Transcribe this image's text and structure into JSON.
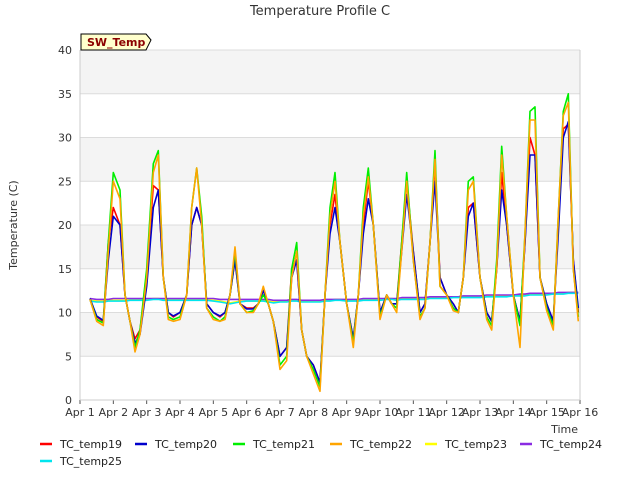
{
  "chart_data": {
    "type": "line",
    "title": "Temperature Profile C",
    "xlabel": "Time",
    "ylabel": "Temperature (C)",
    "badge": "SW_Temp",
    "xlim": [
      0,
      15
    ],
    "ylim": [
      0,
      40
    ],
    "x_ticks": [
      "Apr 1",
      "Apr 2",
      "Apr 3",
      "Apr 4",
      "Apr 5",
      "Apr 6",
      "Apr 7",
      "Apr 8",
      "Apr 9",
      "Apr 10",
      "Apr 11",
      "Apr 12",
      "Apr 13",
      "Apr 14",
      "Apr 15",
      "Apr 16"
    ],
    "y_ticks": [
      0,
      5,
      10,
      15,
      20,
      25,
      30,
      35,
      40
    ],
    "legend_position": "bottom",
    "x": [
      0.3,
      0.5,
      0.7,
      0.85,
      1.0,
      1.2,
      1.35,
      1.5,
      1.65,
      1.8,
      2.0,
      2.2,
      2.35,
      2.5,
      2.65,
      2.8,
      3.0,
      3.2,
      3.35,
      3.5,
      3.65,
      3.8,
      4.0,
      4.2,
      4.35,
      4.5,
      4.65,
      4.8,
      5.0,
      5.2,
      5.35,
      5.5,
      5.65,
      5.8,
      6.0,
      6.2,
      6.35,
      6.5,
      6.65,
      6.8,
      7.0,
      7.2,
      7.35,
      7.5,
      7.65,
      7.8,
      8.0,
      8.2,
      8.35,
      8.5,
      8.65,
      8.8,
      9.0,
      9.2,
      9.35,
      9.5,
      9.65,
      9.8,
      10.0,
      10.2,
      10.35,
      10.5,
      10.65,
      10.8,
      11.0,
      11.2,
      11.35,
      11.5,
      11.65,
      11.8,
      12.0,
      12.2,
      12.35,
      12.5,
      12.65,
      12.8,
      13.0,
      13.2,
      13.35,
      13.5,
      13.65,
      13.8,
      14.0,
      14.2,
      14.35,
      14.5,
      14.65,
      14.8,
      14.95
    ],
    "series": [
      {
        "name": "TC_temp19",
        "color": "#ff0000",
        "values": [
          11.5,
          9.5,
          9.0,
          18,
          22,
          20,
          12,
          9,
          7,
          8,
          14,
          24.5,
          24,
          14,
          10,
          9.5,
          10,
          12,
          20,
          22,
          20,
          11,
          10,
          9.5,
          10,
          12,
          16,
          11,
          10.5,
          10.5,
          11,
          12.5,
          11,
          9,
          5,
          6,
          15,
          16,
          8,
          5,
          4,
          2,
          12,
          20,
          23.5,
          18,
          11,
          7,
          12,
          20,
          25,
          20,
          10,
          12,
          11,
          11,
          18,
          25,
          17,
          10,
          11,
          18,
          27,
          14,
          12,
          11,
          10,
          14,
          22,
          22.5,
          14,
          10,
          9,
          15,
          26,
          20,
          12,
          9,
          18,
          30,
          28,
          14,
          11,
          9,
          20,
          31,
          31.5,
          16,
          10
        ]
      },
      {
        "name": "TC_temp20",
        "color": "#0000cc",
        "values": [
          11.6,
          9.6,
          9.1,
          16,
          21,
          20,
          12,
          9,
          6.5,
          7.5,
          13,
          22,
          24,
          14,
          10,
          9.6,
          10,
          12,
          20,
          22,
          20,
          11,
          10,
          9.6,
          10,
          12,
          16,
          11,
          10.4,
          10.4,
          11,
          12.5,
          11,
          9,
          5,
          6,
          14,
          16,
          8,
          5,
          4,
          2,
          12,
          19,
          22,
          18,
          11,
          7,
          12,
          19,
          23,
          20,
          10,
          12,
          11,
          11,
          17,
          23.5,
          17,
          10,
          11,
          18,
          25,
          14,
          12,
          11,
          10,
          14,
          21,
          22.5,
          14,
          10,
          9,
          15,
          24,
          20,
          12,
          9,
          18,
          28,
          28,
          14,
          11,
          9,
          19,
          30,
          31.8,
          16,
          10.5
        ]
      },
      {
        "name": "TC_temp21",
        "color": "#00ee00",
        "values": [
          11.5,
          9.2,
          8.8,
          18,
          26,
          24,
          12,
          9,
          6,
          8,
          15,
          27,
          28.5,
          14,
          9.5,
          9.2,
          9.5,
          12,
          22,
          26.5,
          21,
          10.5,
          9.5,
          9,
          9.5,
          12,
          17,
          11,
          10,
          10.2,
          11,
          12,
          11,
          9,
          4,
          5,
          15,
          18,
          8,
          5,
          3.5,
          1.5,
          12,
          22,
          26,
          18,
          11,
          6.5,
          12,
          22,
          26.5,
          20,
          9.5,
          12,
          11,
          10.5,
          18,
          26,
          16,
          9.5,
          10.5,
          18,
          28.5,
          13,
          12,
          10.5,
          10,
          14,
          25,
          25.5,
          14,
          9.5,
          8.5,
          16,
          29,
          21,
          12,
          8.5,
          19,
          33,
          33.5,
          14,
          10.5,
          8.5,
          21,
          33,
          35,
          15,
          9.5
        ]
      },
      {
        "name": "TC_temp22",
        "color": "#ffa500",
        "values": [
          11.5,
          9.0,
          8.5,
          17,
          25,
          23,
          12,
          9,
          5.5,
          7.5,
          14,
          26,
          28,
          14,
          9.2,
          9,
          9.2,
          12,
          22,
          26.5,
          20,
          10.5,
          9.2,
          9,
          9.2,
          12,
          17.5,
          11,
          10,
          10,
          11,
          13,
          11,
          9,
          3.5,
          4.5,
          14,
          17,
          8,
          5,
          3,
          1,
          12,
          21,
          25,
          18,
          11,
          6,
          12,
          21,
          25.5,
          20,
          9.2,
          12,
          11,
          10,
          17,
          25,
          16,
          9.2,
          10.5,
          18,
          27.5,
          13,
          12,
          10.2,
          10,
          14,
          24,
          25,
          14,
          9.2,
          8,
          15,
          28,
          21,
          12,
          6,
          19,
          32,
          32,
          14,
          10.2,
          8,
          21,
          32.5,
          34,
          15,
          9
        ]
      },
      {
        "name": "TC_temp23",
        "color": "#ffff00",
        "values": [
          11.4,
          11.3,
          11.3,
          11.4,
          11.4,
          11.4,
          11.4,
          11.5,
          11.5,
          11.5,
          11.5,
          11.6,
          11.6,
          11.5,
          11.5,
          11.5,
          11.5,
          11.5,
          11.5,
          11.5,
          11.5,
          11.5,
          11.4,
          11.3,
          11.2,
          11.1,
          11.2,
          11.3,
          11.3,
          11.3,
          11.3,
          11.4,
          11.3,
          11.2,
          11.3,
          11.3,
          11.4,
          11.4,
          11.3,
          11.3,
          11.3,
          11.3,
          11.4,
          11.4,
          11.5,
          11.5,
          11.4,
          11.4,
          11.4,
          11.5,
          11.5,
          11.5,
          11.5,
          11.6,
          11.6,
          11.5,
          11.6,
          11.6,
          11.6,
          11.6,
          11.6,
          11.7,
          11.7,
          11.7,
          11.7,
          11.8,
          11.8,
          11.8,
          11.8,
          11.8,
          11.8,
          11.9,
          11.9,
          11.9,
          11.9,
          11.9,
          12.0,
          12.0,
          12.0,
          12.1,
          12.1,
          12.1,
          12.1,
          12.2,
          12.2,
          12.2,
          12.3,
          12.3,
          12.3
        ]
      },
      {
        "name": "TC_temp24",
        "color": "#8a2be2",
        "values": [
          11.6,
          11.5,
          11.5,
          11.5,
          11.6,
          11.6,
          11.6,
          11.6,
          11.6,
          11.6,
          11.6,
          11.6,
          11.6,
          11.6,
          11.6,
          11.6,
          11.6,
          11.6,
          11.6,
          11.6,
          11.6,
          11.6,
          11.6,
          11.5,
          11.5,
          11.5,
          11.5,
          11.5,
          11.5,
          11.5,
          11.5,
          11.5,
          11.5,
          11.4,
          11.4,
          11.4,
          11.5,
          11.5,
          11.4,
          11.4,
          11.4,
          11.4,
          11.5,
          11.5,
          11.5,
          11.5,
          11.5,
          11.5,
          11.5,
          11.6,
          11.6,
          11.6,
          11.6,
          11.6,
          11.6,
          11.6,
          11.7,
          11.7,
          11.7,
          11.7,
          11.7,
          11.8,
          11.8,
          11.8,
          11.8,
          11.8,
          11.8,
          11.9,
          11.9,
          11.9,
          11.9,
          12.0,
          12.0,
          12.0,
          12.0,
          12.0,
          12.0,
          12.1,
          12.1,
          12.2,
          12.2,
          12.2,
          12.2,
          12.2,
          12.3,
          12.3,
          12.3,
          12.3,
          12.3
        ]
      },
      {
        "name": "TC_temp25",
        "color": "#00e5ee",
        "values": [
          11.3,
          11.2,
          11.2,
          11.3,
          11.3,
          11.3,
          11.3,
          11.4,
          11.4,
          11.4,
          11.4,
          11.5,
          11.5,
          11.4,
          11.4,
          11.4,
          11.4,
          11.4,
          11.4,
          11.4,
          11.4,
          11.4,
          11.3,
          11.2,
          11.1,
          11.0,
          11.1,
          11.2,
          11.3,
          11.3,
          11.3,
          11.3,
          11.2,
          11.1,
          11.2,
          11.2,
          11.3,
          11.3,
          11.2,
          11.2,
          11.2,
          11.2,
          11.3,
          11.3,
          11.4,
          11.4,
          11.3,
          11.3,
          11.3,
          11.4,
          11.4,
          11.4,
          11.4,
          11.5,
          11.5,
          11.4,
          11.5,
          11.5,
          11.5,
          11.5,
          11.5,
          11.6,
          11.6,
          11.6,
          11.6,
          11.7,
          11.7,
          11.7,
          11.7,
          11.7,
          11.7,
          11.8,
          11.8,
          11.8,
          11.8,
          11.8,
          11.9,
          11.9,
          11.9,
          12.0,
          12.0,
          12.0,
          12.0,
          12.1,
          12.1,
          12.1,
          12.2,
          12.2,
          12.2
        ]
      }
    ]
  }
}
